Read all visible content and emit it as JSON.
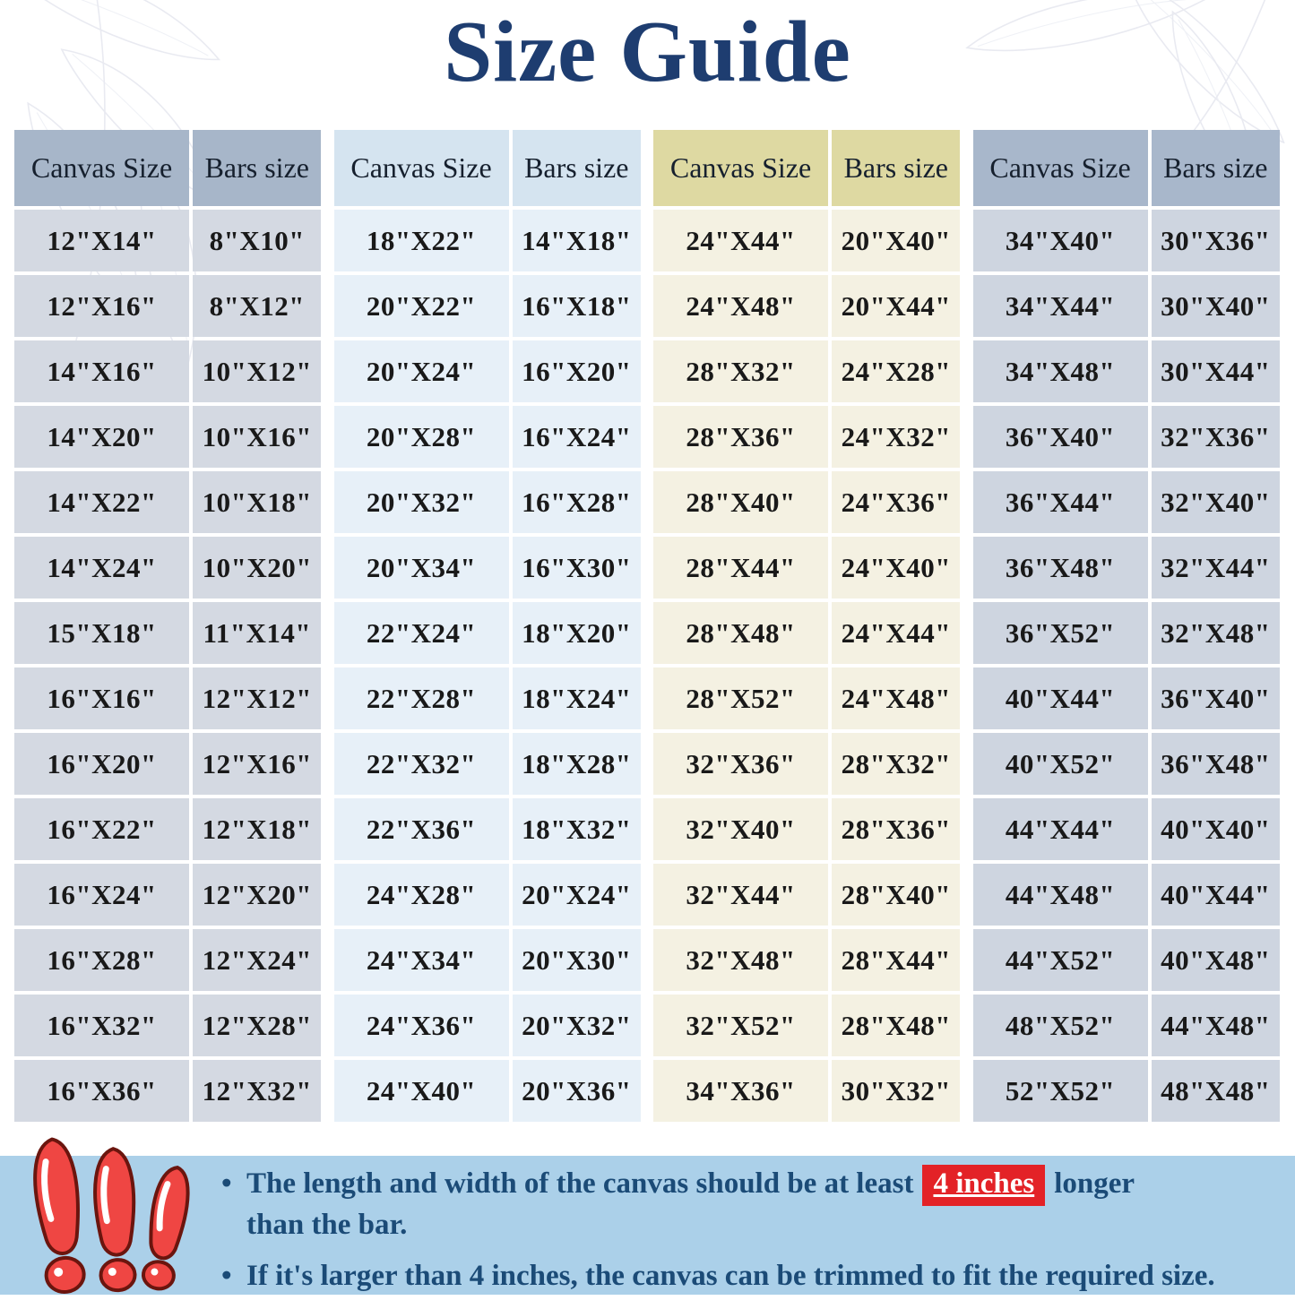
{
  "title": "Size Guide",
  "table": {
    "column_headers": [
      "Canvas Size",
      "Bars size"
    ],
    "groups": [
      {
        "name": "group-1",
        "header_bg": "#a7b6c9",
        "cell_bg": "#d4d9e2",
        "rows": [
          [
            "12\"X14\"",
            "8\"X10\""
          ],
          [
            "12\"X16\"",
            "8\"X12\""
          ],
          [
            "14\"X16\"",
            "10\"X12\""
          ],
          [
            "14\"X20\"",
            "10\"X16\""
          ],
          [
            "14\"X22\"",
            "10\"X18\""
          ],
          [
            "14\"X24\"",
            "10\"X20\""
          ],
          [
            "15\"X18\"",
            "11\"X14\""
          ],
          [
            "16\"X16\"",
            "12\"X12\""
          ],
          [
            "16\"X20\"",
            "12\"X16\""
          ],
          [
            "16\"X22\"",
            "12\"X18\""
          ],
          [
            "16\"X24\"",
            "12\"X20\""
          ],
          [
            "16\"X28\"",
            "12\"X24\""
          ],
          [
            "16\"X32\"",
            "12\"X28\""
          ],
          [
            "16\"X36\"",
            "12\"X32\""
          ]
        ]
      },
      {
        "name": "group-2",
        "header_bg": "#d5e4f0",
        "cell_bg": "#e7f0f8",
        "rows": [
          [
            "18\"X22\"",
            "14\"X18\""
          ],
          [
            "20\"X22\"",
            "16\"X18\""
          ],
          [
            "20\"X24\"",
            "16\"X20\""
          ],
          [
            "20\"X28\"",
            "16\"X24\""
          ],
          [
            "20\"X32\"",
            "16\"X28\""
          ],
          [
            "20\"X34\"",
            "16\"X30\""
          ],
          [
            "22\"X24\"",
            "18\"X20\""
          ],
          [
            "22\"X28\"",
            "18\"X24\""
          ],
          [
            "22\"X32\"",
            "18\"X28\""
          ],
          [
            "22\"X36\"",
            "18\"X32\""
          ],
          [
            "24\"X28\"",
            "20\"X24\""
          ],
          [
            "24\"X34\"",
            "20\"X30\""
          ],
          [
            "24\"X36\"",
            "20\"X32\""
          ],
          [
            "24\"X40\"",
            "20\"X36\""
          ]
        ]
      },
      {
        "name": "group-3",
        "header_bg": "#ded9a2",
        "cell_bg": "#f4f1e2",
        "rows": [
          [
            "24\"X44\"",
            "20\"X40\""
          ],
          [
            "24\"X48\"",
            "20\"X44\""
          ],
          [
            "28\"X32\"",
            "24\"X28\""
          ],
          [
            "28\"X36\"",
            "24\"X32\""
          ],
          [
            "28\"X40\"",
            "24\"X36\""
          ],
          [
            "28\"X44\"",
            "24\"X40\""
          ],
          [
            "28\"X48\"",
            "24\"X44\""
          ],
          [
            "28\"X52\"",
            "24\"X48\""
          ],
          [
            "32\"X36\"",
            "28\"X32\""
          ],
          [
            "32\"X40\"",
            "28\"X36\""
          ],
          [
            "32\"X44\"",
            "28\"X40\""
          ],
          [
            "32\"X48\"",
            "28\"X44\""
          ],
          [
            "32\"X52\"",
            "28\"X48\""
          ],
          [
            "34\"X36\"",
            "30\"X32\""
          ]
        ]
      },
      {
        "name": "group-4",
        "header_bg": "#a8b7cb",
        "cell_bg": "#ced5e0",
        "rows": [
          [
            "34\"X40\"",
            "30\"X36\""
          ],
          [
            "34\"X44\"",
            "30\"X40\""
          ],
          [
            "34\"X48\"",
            "30\"X44\""
          ],
          [
            "36\"X40\"",
            "32\"X36\""
          ],
          [
            "36\"X44\"",
            "32\"X40\""
          ],
          [
            "36\"X48\"",
            "32\"X44\""
          ],
          [
            "36\"X52\"",
            "32\"X48\""
          ],
          [
            "40\"X44\"",
            "36\"X40\""
          ],
          [
            "40\"X52\"",
            "36\"X48\""
          ],
          [
            "44\"X44\"",
            "40\"X40\""
          ],
          [
            "44\"X48\"",
            "40\"X44\""
          ],
          [
            "44\"X52\"",
            "40\"X48\""
          ],
          [
            "48\"X52\"",
            "44\"X48\""
          ],
          [
            "52\"X52\"",
            "48\"X48\""
          ]
        ]
      }
    ]
  },
  "footer": {
    "warning_icon": "triple-exclamation-icon",
    "notes": [
      {
        "before": "The length and width of the canvas should be at least",
        "highlight": "4 inches",
        "after": "longer",
        "line2": "than the bar."
      },
      {
        "text": "If it's larger than 4 inches, the canvas can be trimmed to fit the required size."
      }
    ]
  },
  "colors": {
    "title": "#1e3d70",
    "footer_bg": "#abd0e9",
    "footer_text": "#1b4b77",
    "highlight_bg": "#e32227",
    "highlight_text": "#ffffff",
    "warning_red": "#ef4643",
    "warning_outline": "#6b150e"
  }
}
